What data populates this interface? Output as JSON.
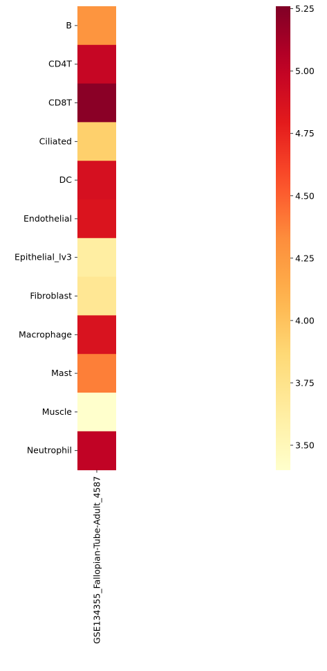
{
  "chart_data": {
    "type": "heatmap",
    "title": "",
    "xlabel": "",
    "ylabel": "",
    "columns": [
      "GSE134355_Fallopian-Tube-Adult_4587"
    ],
    "rows": [
      "B",
      "CD4T",
      "CD8T",
      "Ciliated",
      "DC",
      "Endothelial",
      "Epithelial_lv3",
      "Fibroblast",
      "Macrophage",
      "Mast",
      "Muscle",
      "Neutrophil"
    ],
    "values": [
      [
        4.28
      ],
      [
        4.97
      ],
      [
        5.22
      ],
      [
        3.92
      ],
      [
        4.88
      ],
      [
        4.85
      ],
      [
        3.62
      ],
      [
        3.7
      ],
      [
        4.86
      ],
      [
        4.38
      ],
      [
        3.4
      ],
      [
        5.0
      ]
    ],
    "colormap": "YlOrRd",
    "colorbar": {
      "vmin": 3.4,
      "vmax": 5.26,
      "ticks": [
        3.5,
        3.75,
        4.0,
        4.25,
        4.5,
        4.75,
        5.0,
        5.25
      ],
      "tick_labels": [
        "3.50",
        "3.75",
        "4.00",
        "4.25",
        "4.50",
        "4.75",
        "5.00",
        "5.25"
      ]
    },
    "grid": false,
    "legend": "colorbar-right"
  }
}
